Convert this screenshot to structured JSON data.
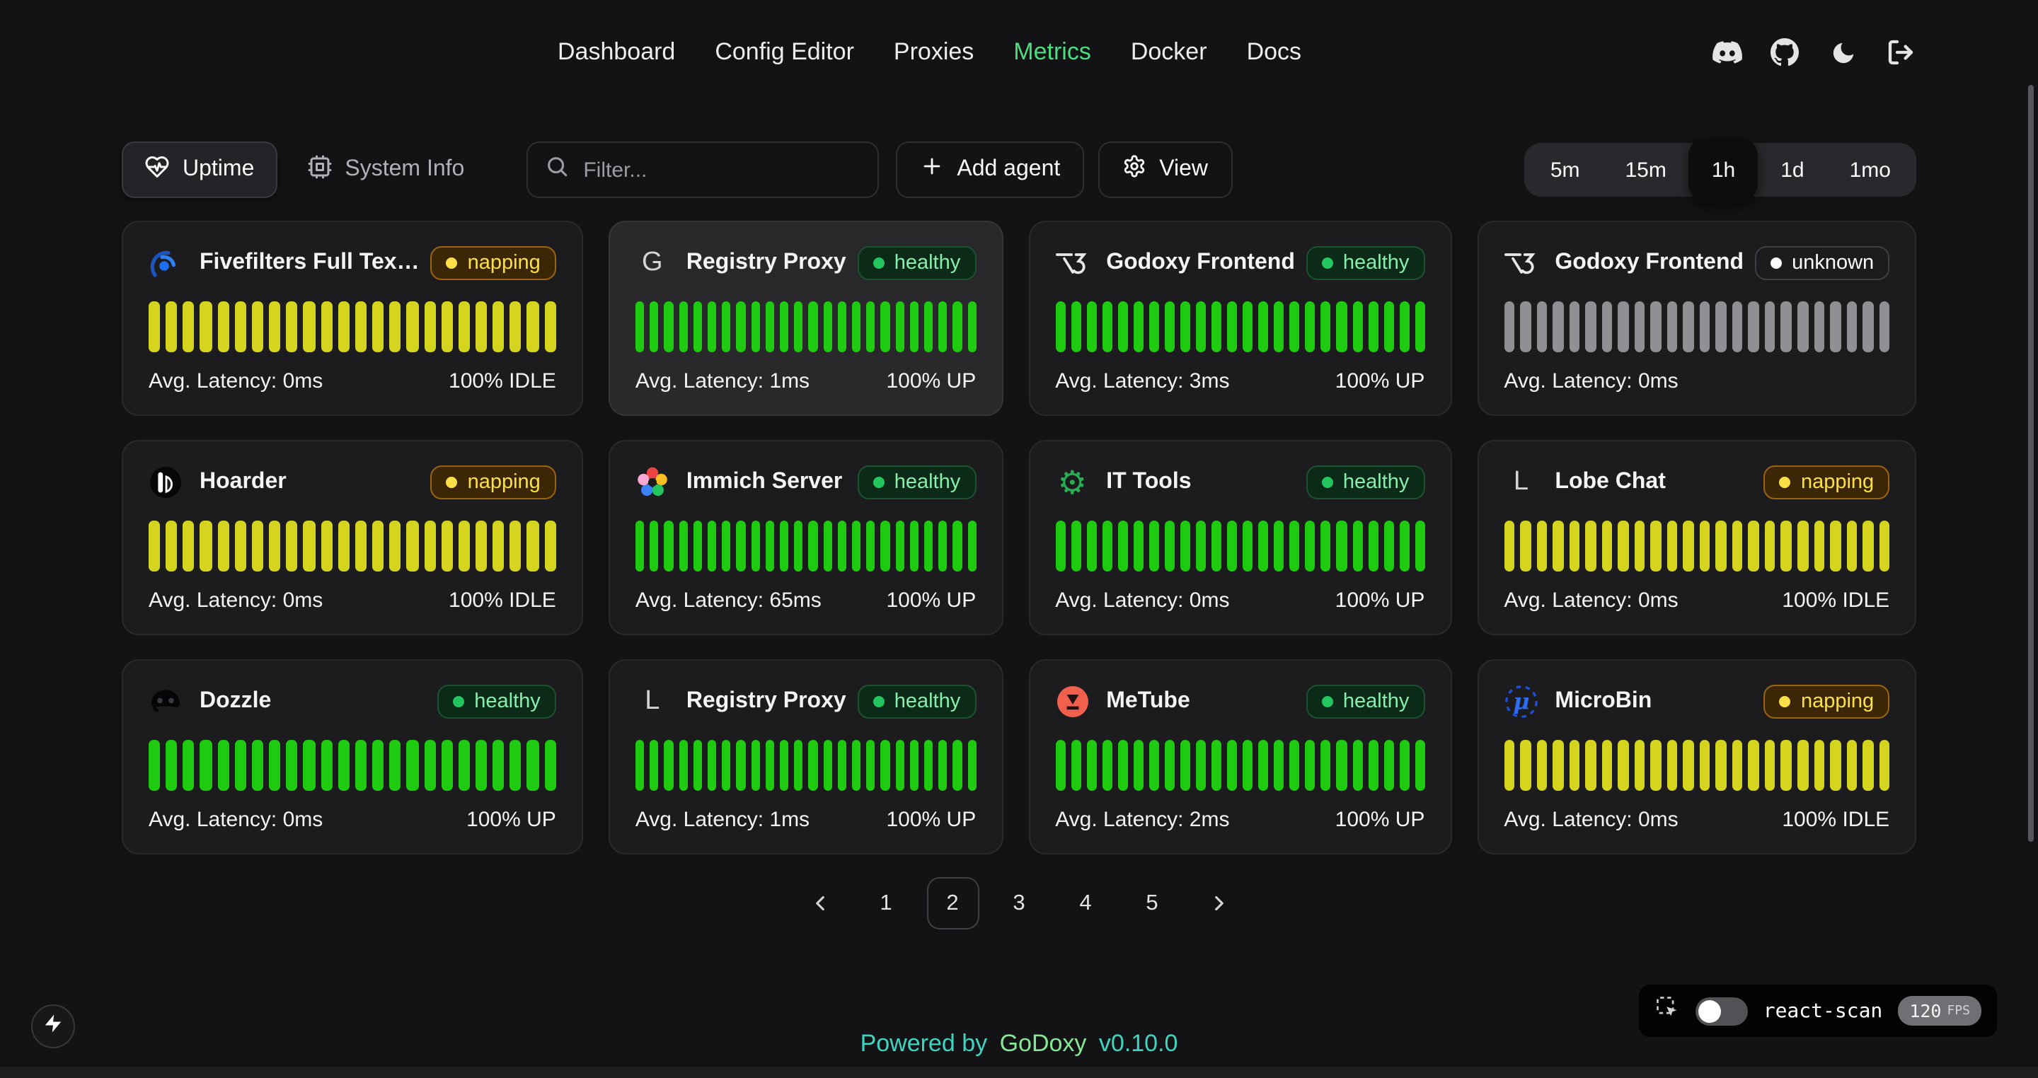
{
  "nav": {
    "items": [
      "Dashboard",
      "Config Editor",
      "Proxies",
      "Metrics",
      "Docker",
      "Docs"
    ],
    "active": "Metrics"
  },
  "header": {
    "icons": [
      "discord",
      "github",
      "moon",
      "logout"
    ]
  },
  "toolbar": {
    "uptime_tab": "Uptime",
    "system_info_tab": "System Info",
    "filter_placeholder": "Filter...",
    "add_agent": "Add agent",
    "view": "View"
  },
  "time_ranges": {
    "options": [
      "5m",
      "15m",
      "1h",
      "1d",
      "1mo"
    ],
    "active": "1h"
  },
  "uptime_grid": {
    "bars_per_card": 24,
    "cards": [
      {
        "name": "Fivefilters Full Tex…",
        "icon": "fivefilters",
        "status": "napping",
        "bar": "yellow",
        "latency": "Avg. Latency: 0ms",
        "uptime": "100% IDLE",
        "highlighted": false
      },
      {
        "name": "Registry Proxy",
        "icon": "letter-g",
        "status": "healthy",
        "bar": "green",
        "latency": "Avg. Latency: 1ms",
        "uptime": "100% UP",
        "highlighted": true
      },
      {
        "name": "Godoxy Frontend",
        "icon": "t3",
        "status": "healthy",
        "bar": "green",
        "latency": "Avg. Latency: 3ms",
        "uptime": "100% UP",
        "highlighted": false
      },
      {
        "name": "Godoxy Frontend",
        "icon": "t3",
        "status": "unknown",
        "bar": "gray",
        "latency": "Avg. Latency: 0ms",
        "uptime": "",
        "highlighted": false
      },
      {
        "name": "Hoarder",
        "icon": "hoarder",
        "status": "napping",
        "bar": "yellow",
        "latency": "Avg. Latency: 0ms",
        "uptime": "100% IDLE",
        "highlighted": false
      },
      {
        "name": "Immich Server",
        "icon": "immich",
        "status": "healthy",
        "bar": "green",
        "latency": "Avg. Latency: 65ms",
        "uptime": "100% UP",
        "highlighted": false
      },
      {
        "name": "IT Tools",
        "icon": "it-tools",
        "status": "healthy",
        "bar": "green",
        "latency": "Avg. Latency: 0ms",
        "uptime": "100% UP",
        "highlighted": false
      },
      {
        "name": "Lobe Chat",
        "icon": "letter-l",
        "status": "napping",
        "bar": "yellow",
        "latency": "Avg. Latency: 0ms",
        "uptime": "100% IDLE",
        "highlighted": false
      },
      {
        "name": "Dozzle",
        "icon": "dozzle",
        "status": "healthy",
        "bar": "green",
        "latency": "Avg. Latency: 0ms",
        "uptime": "100% UP",
        "highlighted": false
      },
      {
        "name": "Registry Proxy",
        "icon": "letter-l",
        "status": "healthy",
        "bar": "green",
        "latency": "Avg. Latency: 1ms",
        "uptime": "100% UP",
        "highlighted": false
      },
      {
        "name": "MeTube",
        "icon": "metube",
        "status": "healthy",
        "bar": "green",
        "latency": "Avg. Latency: 2ms",
        "uptime": "100% UP",
        "highlighted": false
      },
      {
        "name": "MicroBin",
        "icon": "microbin",
        "status": "napping",
        "bar": "yellow",
        "latency": "Avg. Latency: 0ms",
        "uptime": "100% IDLE",
        "highlighted": false
      }
    ]
  },
  "pagination": {
    "pages": [
      "1",
      "2",
      "3",
      "4",
      "5"
    ],
    "active": "2"
  },
  "react_scan": {
    "label": "react-scan",
    "fps": "120",
    "fps_unit": "FPS",
    "enabled": false
  },
  "footer": {
    "powered_by": "Powered by",
    "brand": "GoDoxy",
    "version": "v0.10.0"
  },
  "colors": {
    "accent_green": "#4ade80",
    "bar_green": "#1ecb11",
    "bar_yellow": "#d5d41f",
    "bar_gray": "#8f8f94",
    "badge_healthy_text": "#86efac",
    "badge_napping_text": "#fde047",
    "footer_teal": "#3ed4c0"
  }
}
